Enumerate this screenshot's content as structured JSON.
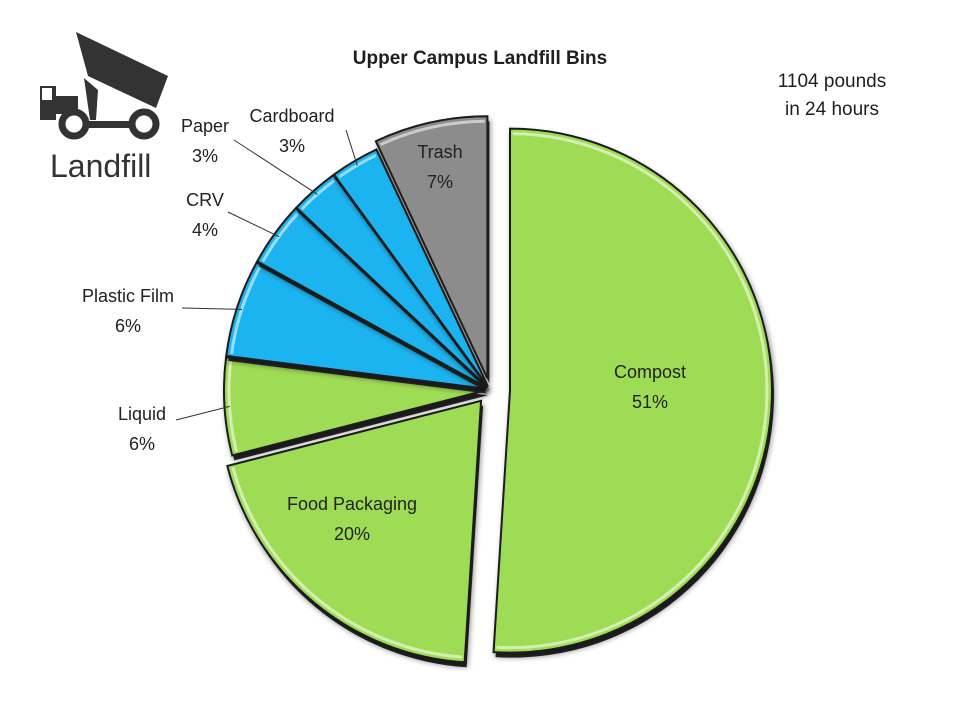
{
  "logo": {
    "icon": "dump-truck-icon",
    "text": "Landfill"
  },
  "note": {
    "line1": "1104 pounds",
    "line2": "in 24 hours"
  },
  "chart_data": {
    "type": "pie",
    "title": "Upper Campus Landfill Bins",
    "slices": [
      {
        "label": "Compost",
        "percent_label": "51%",
        "value": 51,
        "color": "#9fdc55"
      },
      {
        "label": "Food Packaging",
        "percent_label": "20%",
        "value": 20,
        "color": "#9fdc55"
      },
      {
        "label": "Liquid",
        "percent_label": "6%",
        "value": 6,
        "color": "#9fdc55"
      },
      {
        "label": "Plastic Film",
        "percent_label": "6%",
        "value": 6,
        "color": "#1cb4f0"
      },
      {
        "label": "CRV",
        "percent_label": "4%",
        "value": 4,
        "color": "#1cb4f0"
      },
      {
        "label": "Paper",
        "percent_label": "3%",
        "value": 3,
        "color": "#1cb4f0"
      },
      {
        "label": "Cardboard",
        "percent_label": "3%",
        "value": 3,
        "color": "#1cb4f0"
      },
      {
        "label": "Trash",
        "percent_label": "7%",
        "value": 7,
        "color": "#8c8c8c"
      }
    ],
    "start_angle_deg": 0,
    "direction": "clockwise",
    "legend": "none"
  }
}
